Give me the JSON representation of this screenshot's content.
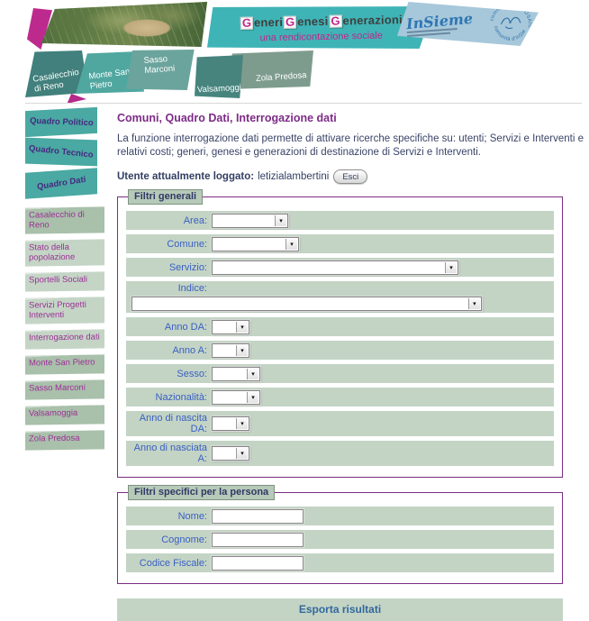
{
  "header": {
    "title_segments": [
      {
        "initial": "G",
        "rest": "eneri"
      },
      {
        "initial": "G",
        "rest": "enesi"
      },
      {
        "initial": "G",
        "rest": "enerazioni"
      }
    ],
    "subtitle": "una rendicontazione sociale",
    "logo": {
      "name": "InSieme",
      "stamp_top": "commissione MOSAICO",
      "stamp_bottom": "comunità d'InSieme"
    },
    "tabs": [
      {
        "label": "Casalecchio di Reno",
        "color": "#41807c"
      },
      {
        "label": "Monte San Pietro",
        "color": "#4fa7a0"
      },
      {
        "label": "Sasso Marconi",
        "color": "#6ba49d"
      },
      {
        "label": "Valsamoggia",
        "color": "#47847e"
      },
      {
        "label": "Zola Predosa",
        "color": "#7e9c8e"
      }
    ]
  },
  "sidebar": {
    "quadro_items": [
      {
        "label": "Quadro Politico"
      },
      {
        "label": "Quadro Tecnico"
      },
      {
        "label": "Quadro Dati"
      }
    ],
    "items": [
      {
        "label": "Casalecchio di Reno",
        "variant": "dark"
      },
      {
        "label": "Stato della popolazione",
        "variant": "light"
      },
      {
        "label": "Sportelli Sociali",
        "variant": "light"
      },
      {
        "label": "Servizi Progetti Interventi",
        "variant": "light"
      },
      {
        "label": "Interrogazione dati",
        "variant": "light"
      },
      {
        "label": "Monte San Pietro",
        "variant": "dark"
      },
      {
        "label": "Sasso Marconi",
        "variant": "dark"
      },
      {
        "label": "Valsamoggia",
        "variant": "dark"
      },
      {
        "label": "Zola Predosa",
        "variant": "dark"
      }
    ]
  },
  "main": {
    "title": "Comuni, Quadro Dati, Interrogazione dati",
    "description": "La funzione interrogazione dati permette di attivare ricerche specifiche su: utenti; Servizi e Interventi e relativi costi; generi, genesi e generazioni di destinazione di Servizi e Interventi.",
    "user_label": "Utente attualmente loggato:",
    "user_name": "letizialambertini",
    "logout_label": "Esci"
  },
  "filters_general": {
    "legend": "Filtri generali",
    "fields": [
      {
        "label": "Area:",
        "type": "select",
        "size": "sm",
        "value": ""
      },
      {
        "label": "Comune:",
        "type": "select",
        "size": "md",
        "value": ""
      },
      {
        "label": "Servizio:",
        "type": "select",
        "size": "lg",
        "value": ""
      },
      {
        "label": "Indice:",
        "type": "select",
        "size": "full",
        "value": ""
      },
      {
        "label": "Anno DA:",
        "type": "select",
        "size": "xs",
        "value": ""
      },
      {
        "label": "Anno A:",
        "type": "select",
        "size": "xs",
        "value": ""
      },
      {
        "label": "Sesso:",
        "type": "select",
        "size": "xs2",
        "value": ""
      },
      {
        "label": "Nazionalità:",
        "type": "select",
        "size": "xs2",
        "value": ""
      },
      {
        "label": "Anno di nascita DA:",
        "type": "select",
        "size": "xs",
        "value": ""
      },
      {
        "label": "Anno di nasciata A:",
        "type": "select",
        "size": "xs",
        "value": ""
      }
    ]
  },
  "filters_person": {
    "legend": "Filtri specifici per la persona",
    "fields": [
      {
        "label": "Nome:",
        "type": "text",
        "value": ""
      },
      {
        "label": "Cognome:",
        "type": "text",
        "value": ""
      },
      {
        "label": "Codice Fiscale:",
        "type": "text",
        "value": ""
      }
    ]
  },
  "export": {
    "label": "Esporta risultati"
  },
  "colors": {
    "brand_teal": "#3fb4b6",
    "brand_magenta": "#c0268c",
    "heading_purple": "#7d2b87",
    "fieldset_border": "#7c2c86",
    "label_blue": "#3a5fc4",
    "row_sage": "#c3d4c5",
    "sidebar_text_magenta": "#9c2f96",
    "export_text_blue": "#33689c",
    "logo_panel_blue": "#a7c8da"
  }
}
